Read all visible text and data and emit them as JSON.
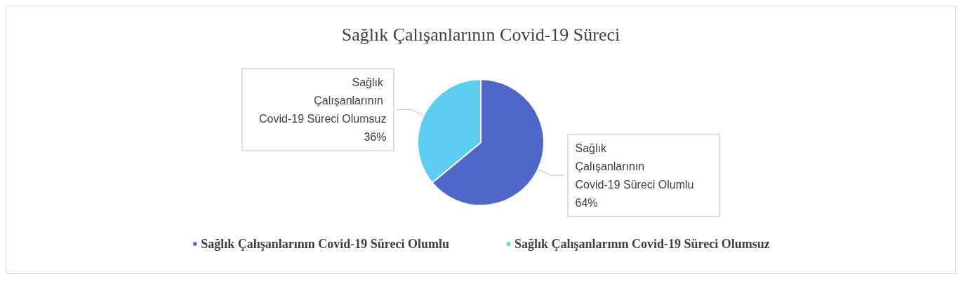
{
  "chart_data": {
    "type": "pie",
    "title": "Sağlık Çalışanlarının Covid-19 Süreci",
    "categories": [
      "Sağlık Çalışanlarının Covid-19 Süreci Olumlu",
      "Sağlık Çalışanlarının Covid-19 Süreci Olumsuz"
    ],
    "values": [
      64,
      36
    ],
    "colors": [
      "#4f67c8",
      "#5fcdf2"
    ],
    "value_labels": [
      "64%",
      "36%"
    ],
    "legend": "bottom"
  }
}
